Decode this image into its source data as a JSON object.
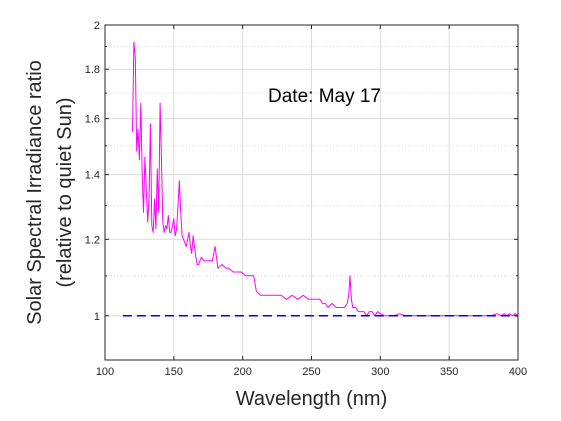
{
  "chart_data": {
    "type": "line",
    "title": "",
    "xlabel": "Wavelength (nm)",
    "ylabel_lines": [
      "Solar Spectral Irradiance ratio",
      "(relative to quiet Sun)"
    ],
    "annotation": "Date: May 17",
    "xlim": [
      100,
      400
    ],
    "ylim": [
      0.9,
      2.0
    ],
    "yscale": "log",
    "xticks": [
      100,
      150,
      200,
      250,
      300,
      350,
      400
    ],
    "xtick_labels": [
      "100",
      "150",
      "200",
      "250",
      "300",
      "350",
      "400"
    ],
    "yticks": [
      1,
      1.2,
      1.4,
      1.6,
      1.8,
      2
    ],
    "ytick_labels": [
      "1",
      "1.2",
      "1.4",
      "1.6",
      "1.8",
      "2"
    ],
    "y_minor_ticks": [
      0.9,
      1.1,
      1.3,
      1.5,
      1.7,
      1.9
    ],
    "grid": true,
    "colors": {
      "spectrum": "#ff00ff",
      "reference": "#0000ff",
      "axes": "#262626",
      "grid": "#dcdcdc"
    },
    "series": [
      {
        "type": "line",
        "x": [
          120,
          121,
          122,
          123,
          124,
          125,
          126,
          127,
          128,
          129,
          130,
          131,
          132,
          133,
          134,
          135,
          136,
          137,
          138,
          139,
          140,
          141,
          142,
          143,
          144,
          145,
          146,
          147,
          148,
          149,
          150,
          151,
          152,
          153,
          154,
          155,
          156,
          157,
          158,
          159,
          160,
          161,
          162,
          163,
          164,
          165,
          166,
          167,
          168,
          170,
          172,
          175,
          178,
          180,
          182,
          185,
          188,
          190,
          193,
          196,
          199,
          202,
          205,
          207,
          208,
          210,
          213,
          216,
          220,
          224,
          228,
          232,
          236,
          240,
          244,
          248,
          252,
          256,
          258,
          260,
          262,
          265,
          268,
          270,
          272,
          274,
          276,
          277,
          278,
          279,
          280,
          281,
          282,
          284,
          286,
          288,
          290,
          292,
          294,
          296,
          298,
          300,
          303,
          306,
          310,
          314,
          318,
          322,
          326,
          330,
          335,
          340,
          345,
          350,
          355,
          360,
          365,
          370,
          375,
          380,
          385,
          388,
          390,
          392,
          394,
          396,
          398,
          400
        ],
        "y": [
          1.55,
          1.92,
          1.85,
          1.48,
          1.56,
          1.45,
          1.66,
          1.4,
          1.28,
          1.46,
          1.35,
          1.25,
          1.33,
          1.58,
          1.24,
          1.22,
          1.32,
          1.23,
          1.42,
          1.28,
          1.66,
          1.46,
          1.25,
          1.22,
          1.24,
          1.23,
          1.27,
          1.22,
          1.22,
          1.24,
          1.26,
          1.21,
          1.23,
          1.3,
          1.38,
          1.28,
          1.21,
          1.2,
          1.19,
          1.18,
          1.2,
          1.22,
          1.18,
          1.16,
          1.21,
          1.18,
          1.15,
          1.13,
          1.13,
          1.15,
          1.14,
          1.14,
          1.14,
          1.18,
          1.12,
          1.13,
          1.12,
          1.12,
          1.11,
          1.11,
          1.11,
          1.1,
          1.1,
          1.1,
          1.1,
          1.06,
          1.05,
          1.05,
          1.05,
          1.05,
          1.05,
          1.04,
          1.05,
          1.04,
          1.05,
          1.04,
          1.04,
          1.04,
          1.03,
          1.03,
          1.02,
          1.03,
          1.02,
          1.02,
          1.02,
          1.02,
          1.03,
          1.05,
          1.1,
          1.04,
          1.02,
          1.02,
          1.02,
          1.01,
          1.01,
          1.01,
          1.0,
          1.01,
          1.01,
          1.0,
          1.01,
          1.005,
          1.0,
          1.0,
          1.0,
          1.005,
          1.0,
          1.0,
          1.0,
          1.0,
          1.0,
          1.0,
          1.0,
          1.0,
          1.0,
          1.0,
          1.0,
          1.0,
          1.0,
          1.0,
          1.005,
          1.0,
          1.005,
          1.0,
          1.005,
          1.0,
          1.005,
          1.0
        ]
      },
      {
        "type": "line",
        "style": "dashed",
        "x": [
          113,
          400
        ],
        "y": [
          1.0,
          1.0
        ]
      }
    ]
  }
}
